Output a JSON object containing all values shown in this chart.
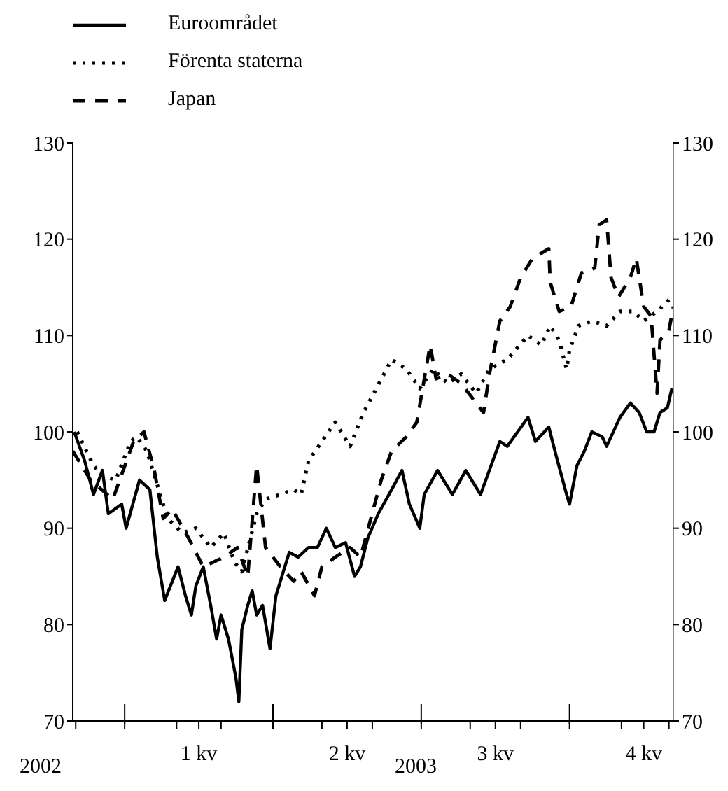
{
  "chart_data": {
    "type": "line",
    "legend": "top left",
    "grid": false,
    "xlim": [
      0.65,
      4.7
    ],
    "xticks": [
      {
        "value": 0.67,
        "label": null
      },
      {
        "value": 1,
        "label": null
      },
      {
        "value": 1.35,
        "label": null
      },
      {
        "value": 1.5,
        "label": "1 kv"
      },
      {
        "value": 1.65,
        "label": null
      },
      {
        "value": 2,
        "label": null
      },
      {
        "value": 2.33,
        "label": null
      },
      {
        "value": 2.5,
        "label": "2 kv"
      },
      {
        "value": 2.67,
        "label": null
      },
      {
        "value": 3,
        "label": null
      },
      {
        "value": 3.33,
        "label": null
      },
      {
        "value": 3.5,
        "label": "3 kv"
      },
      {
        "value": 3.67,
        "label": null
      },
      {
        "value": 4,
        "label": null
      },
      {
        "value": 4.35,
        "label": null
      },
      {
        "value": 4.5,
        "label": "4 kv"
      },
      {
        "value": 4.67,
        "label": null
      }
    ],
    "ylim": [
      70,
      130
    ],
    "yticks": [
      70,
      80,
      90,
      100,
      110,
      120,
      130
    ],
    "y2lim": [
      70,
      130
    ],
    "y2ticks": [
      70,
      80,
      90,
      100,
      110,
      120,
      130
    ],
    "annotations": [
      "2002",
      "2003"
    ],
    "series": [
      {
        "name": "Euroområdet",
        "color": "#000000",
        "line_style": "solid",
        "x": [
          0.66,
          0.73,
          0.79,
          0.85,
          0.89,
          0.98,
          1.01,
          1.1,
          1.17,
          1.22,
          1.27,
          1.36,
          1.41,
          1.45,
          1.48,
          1.53,
          1.58,
          1.62,
          1.65,
          1.7,
          1.75,
          1.77,
          1.79,
          1.83,
          1.86,
          1.89,
          1.93,
          1.98,
          2.02,
          2.07,
          2.11,
          2.17,
          2.24,
          2.3,
          2.36,
          2.42,
          2.49,
          2.55,
          2.59,
          2.64,
          2.71,
          2.8,
          2.87,
          2.92,
          2.99,
          3.02,
          3.11,
          3.21,
          3.3,
          3.4,
          3.53,
          3.58,
          3.65,
          3.72,
          3.77,
          3.86,
          3.91,
          3.98,
          4.0,
          4.05,
          4.1,
          4.15,
          4.22,
          4.25,
          4.34,
          4.41,
          4.47,
          4.52,
          4.57,
          4.61,
          4.66,
          4.69
        ],
        "values": [
          100,
          97,
          93.5,
          96,
          91.5,
          92.5,
          90,
          95,
          94,
          87,
          82.5,
          86,
          83,
          81,
          84,
          86,
          82,
          78.5,
          81,
          78.5,
          74.5,
          72,
          79.5,
          82,
          83.5,
          81,
          82,
          77.5,
          83,
          85.5,
          87.5,
          87,
          88,
          88,
          90,
          88,
          88.5,
          85,
          86,
          89,
          91.5,
          94,
          96,
          92.5,
          90,
          93.5,
          96,
          93.5,
          96,
          93.5,
          99,
          98.5,
          100,
          101.5,
          99,
          100.5,
          97.5,
          93.5,
          92.5,
          96.5,
          98,
          100,
          99.5,
          98.5,
          101.5,
          103,
          102,
          100,
          100,
          102,
          102.5,
          104.5
        ]
      },
      {
        "name": "Förenta staterna",
        "color": "#000000",
        "line_style": "dotted",
        "x": [
          0.68,
          0.79,
          0.85,
          0.94,
          1.04,
          1.08,
          1.15,
          1.22,
          1.29,
          1.39,
          1.48,
          1.58,
          1.67,
          1.74,
          1.79,
          1.89,
          1.95,
          2.05,
          2.14,
          2.19,
          2.24,
          2.33,
          2.42,
          2.52,
          2.61,
          2.68,
          2.8,
          2.9,
          2.99,
          3.08,
          3.18,
          3.27,
          3.37,
          3.46,
          3.58,
          3.72,
          3.81,
          3.87,
          3.93,
          3.98,
          4.0,
          4.06,
          4.15,
          4.25,
          4.34,
          4.43,
          4.5,
          4.59,
          4.69
        ],
        "values": [
          100,
          96.5,
          95.5,
          95,
          99,
          99.5,
          98,
          94.5,
          91,
          89.5,
          90,
          88,
          89.5,
          86.5,
          85.5,
          91.5,
          93,
          93.5,
          94,
          93.5,
          97,
          99,
          101,
          98.5,
          102,
          104,
          107.5,
          106.5,
          104.5,
          106.5,
          105,
          106,
          104,
          106.5,
          107.5,
          110,
          109,
          111,
          109.5,
          106.5,
          108.5,
          111,
          111.5,
          111,
          112.5,
          112.5,
          111.5,
          112.5,
          114
        ]
      },
      {
        "name": "Japan",
        "color": "#000000",
        "line_style": "dashed",
        "x": [
          0.65,
          0.77,
          0.92,
          1.06,
          1.13,
          1.2,
          1.26,
          1.32,
          1.43,
          1.53,
          1.67,
          1.76,
          1.83,
          1.89,
          1.95,
          2.05,
          2.14,
          2.19,
          2.28,
          2.33,
          2.42,
          2.52,
          2.59,
          2.66,
          2.73,
          2.8,
          2.9,
          2.97,
          3.06,
          3.1,
          3.18,
          3.27,
          3.42,
          3.46,
          3.53,
          3.6,
          3.67,
          3.75,
          3.86,
          3.87,
          3.93,
          4.01,
          4.08,
          4.17,
          4.2,
          4.25,
          4.28,
          4.33,
          4.41,
          4.45,
          4.5,
          4.55,
          4.59,
          4.61,
          4.67,
          4.7
        ],
        "values": [
          98,
          95,
          93,
          99,
          100,
          96,
          91,
          92,
          89,
          86,
          87,
          88,
          85,
          96.5,
          88,
          86,
          84.5,
          85.5,
          83,
          86,
          87,
          88,
          87,
          91,
          95,
          98,
          99.5,
          101,
          109,
          105.5,
          106,
          105,
          102,
          106,
          111.5,
          113,
          116,
          118,
          119,
          115.5,
          112.5,
          113,
          116.5,
          117,
          121.5,
          122,
          116,
          114,
          116,
          118,
          113,
          112,
          104,
          109.5,
          110.5,
          113
        ]
      }
    ]
  }
}
